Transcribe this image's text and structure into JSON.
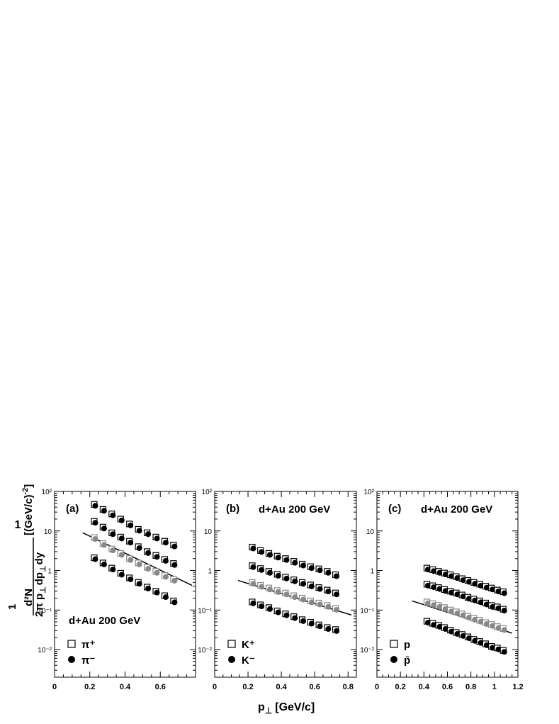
{
  "figure": {
    "xlabel_main": "p",
    "xlabel_sub": "⊥",
    "xlabel_unit": "[GeV/c]",
    "ylabel": {
      "prefix": "1",
      "denom_a": "2π p",
      "sub_perp": "⊥",
      "numer": "d²N",
      "denom_b": "dp",
      "denom_c": "dy",
      "unit": "[(GeV/c)",
      "unit_exp": "-2",
      "unit_close": "]"
    }
  },
  "chart_data": [
    {
      "type": "scatter",
      "panel_label": "(a)",
      "system_label_top": "",
      "system_label_inner": "d+Au 200 GeV",
      "log_y": true,
      "xlim": [
        0,
        0.8
      ],
      "ylim": [
        0.002,
        100
      ],
      "x_ticks": [
        "0",
        "0.2",
        "0.4",
        "0.6"
      ],
      "y_ticks": [
        "10⁻²",
        "10⁻¹",
        "1",
        "10",
        "10²"
      ],
      "legend": [
        {
          "marker": "open-square",
          "label": "π⁺"
        },
        {
          "marker": "filled-circle",
          "label": "π⁻"
        }
      ],
      "x": [
        0.225,
        0.275,
        0.325,
        0.375,
        0.425,
        0.475,
        0.525,
        0.575,
        0.625,
        0.675
      ],
      "series": [
        {
          "values": [
            47,
            35,
            27,
            20,
            15,
            11,
            9,
            7,
            5.5,
            4.4
          ]
        },
        {
          "values": [
            17.5,
            12.5,
            9,
            7,
            5.5,
            4,
            3,
            2.4,
            1.9,
            1.5
          ]
        },
        {
          "values": [
            6.8,
            4.8,
            3.5,
            2.7,
            2.0,
            1.55,
            1.2,
            0.95,
            0.75,
            0.6
          ]
        },
        {
          "values": [
            2.1,
            1.55,
            1.15,
            0.85,
            0.65,
            0.5,
            0.38,
            0.3,
            0.23,
            0.17
          ]
        }
      ],
      "fit_line": {
        "x": [
          0.16,
          0.78
        ],
        "y": [
          9,
          0.42
        ]
      }
    },
    {
      "type": "scatter",
      "panel_label": "(b)",
      "system_label_top": "d+Au 200 GeV",
      "system_label_inner": "",
      "log_y": true,
      "xlim": [
        0,
        0.85
      ],
      "ylim": [
        0.002,
        100
      ],
      "x_ticks": [
        "0",
        "0.2",
        "0.4",
        "0.6",
        "0.8"
      ],
      "y_ticks": [
        "10⁻²",
        "10⁻¹",
        "1",
        "10",
        "10²"
      ],
      "legend": [
        {
          "marker": "open-square",
          "label": "K⁺"
        },
        {
          "marker": "filled-circle",
          "label": "K⁻"
        }
      ],
      "x": [
        0.225,
        0.275,
        0.325,
        0.375,
        0.425,
        0.475,
        0.525,
        0.575,
        0.625,
        0.675,
        0.725
      ],
      "series": [
        {
          "values": [
            3.9,
            3.2,
            2.7,
            2.3,
            2.0,
            1.7,
            1.45,
            1.25,
            1.1,
            0.95,
            0.78
          ]
        },
        {
          "values": [
            1.32,
            1.12,
            0.95,
            0.8,
            0.68,
            0.58,
            0.5,
            0.43,
            0.37,
            0.32,
            0.27
          ]
        },
        {
          "values": [
            0.5,
            0.42,
            0.36,
            0.31,
            0.27,
            0.23,
            0.2,
            0.17,
            0.15,
            0.13,
            0.11
          ]
        },
        {
          "values": [
            0.16,
            0.135,
            0.115,
            0.095,
            0.08,
            0.068,
            0.057,
            0.049,
            0.042,
            0.036,
            0.032
          ]
        }
      ],
      "fit_line": {
        "x": [
          0.14,
          0.82
        ],
        "y": [
          0.56,
          0.075
        ]
      }
    },
    {
      "type": "scatter",
      "panel_label": "(c)",
      "system_label_top": "d+Au 200 GeV",
      "system_label_inner": "",
      "log_y": true,
      "xlim": [
        0,
        1.2
      ],
      "ylim": [
        0.002,
        100
      ],
      "x_ticks": [
        "0",
        "0.2",
        "0.4",
        "0.6",
        "0.8",
        "1",
        "1.2"
      ],
      "y_ticks": [
        "10⁻²",
        "10⁻¹",
        "1",
        "10",
        "10²"
      ],
      "legend": [
        {
          "marker": "open-square",
          "label": "p"
        },
        {
          "marker": "filled-circle",
          "label": "p̄"
        }
      ],
      "x": [
        0.425,
        0.475,
        0.525,
        0.575,
        0.625,
        0.675,
        0.725,
        0.775,
        0.825,
        0.875,
        0.925,
        0.975,
        1.025,
        1.075
      ],
      "series": [
        {
          "values": [
            1.15,
            1.05,
            0.95,
            0.86,
            0.78,
            0.7,
            0.62,
            0.56,
            0.5,
            0.45,
            0.4,
            0.36,
            0.32,
            0.29
          ]
        },
        {
          "values": [
            0.45,
            0.41,
            0.37,
            0.33,
            0.3,
            0.27,
            0.24,
            0.21,
            0.19,
            0.17,
            0.15,
            0.13,
            0.12,
            0.105
          ]
        },
        {
          "values": [
            0.16,
            0.145,
            0.13,
            0.115,
            0.1,
            0.09,
            0.08,
            0.07,
            0.062,
            0.055,
            0.048,
            0.043,
            0.038,
            0.034
          ]
        },
        {
          "values": [
            0.052,
            0.046,
            0.041,
            0.036,
            0.031,
            0.027,
            0.024,
            0.021,
            0.018,
            0.016,
            0.014,
            0.012,
            0.011,
            0.0095
          ]
        }
      ],
      "fit_line": {
        "x": [
          0.3,
          1.15
        ],
        "y": [
          0.17,
          0.026
        ]
      }
    }
  ]
}
